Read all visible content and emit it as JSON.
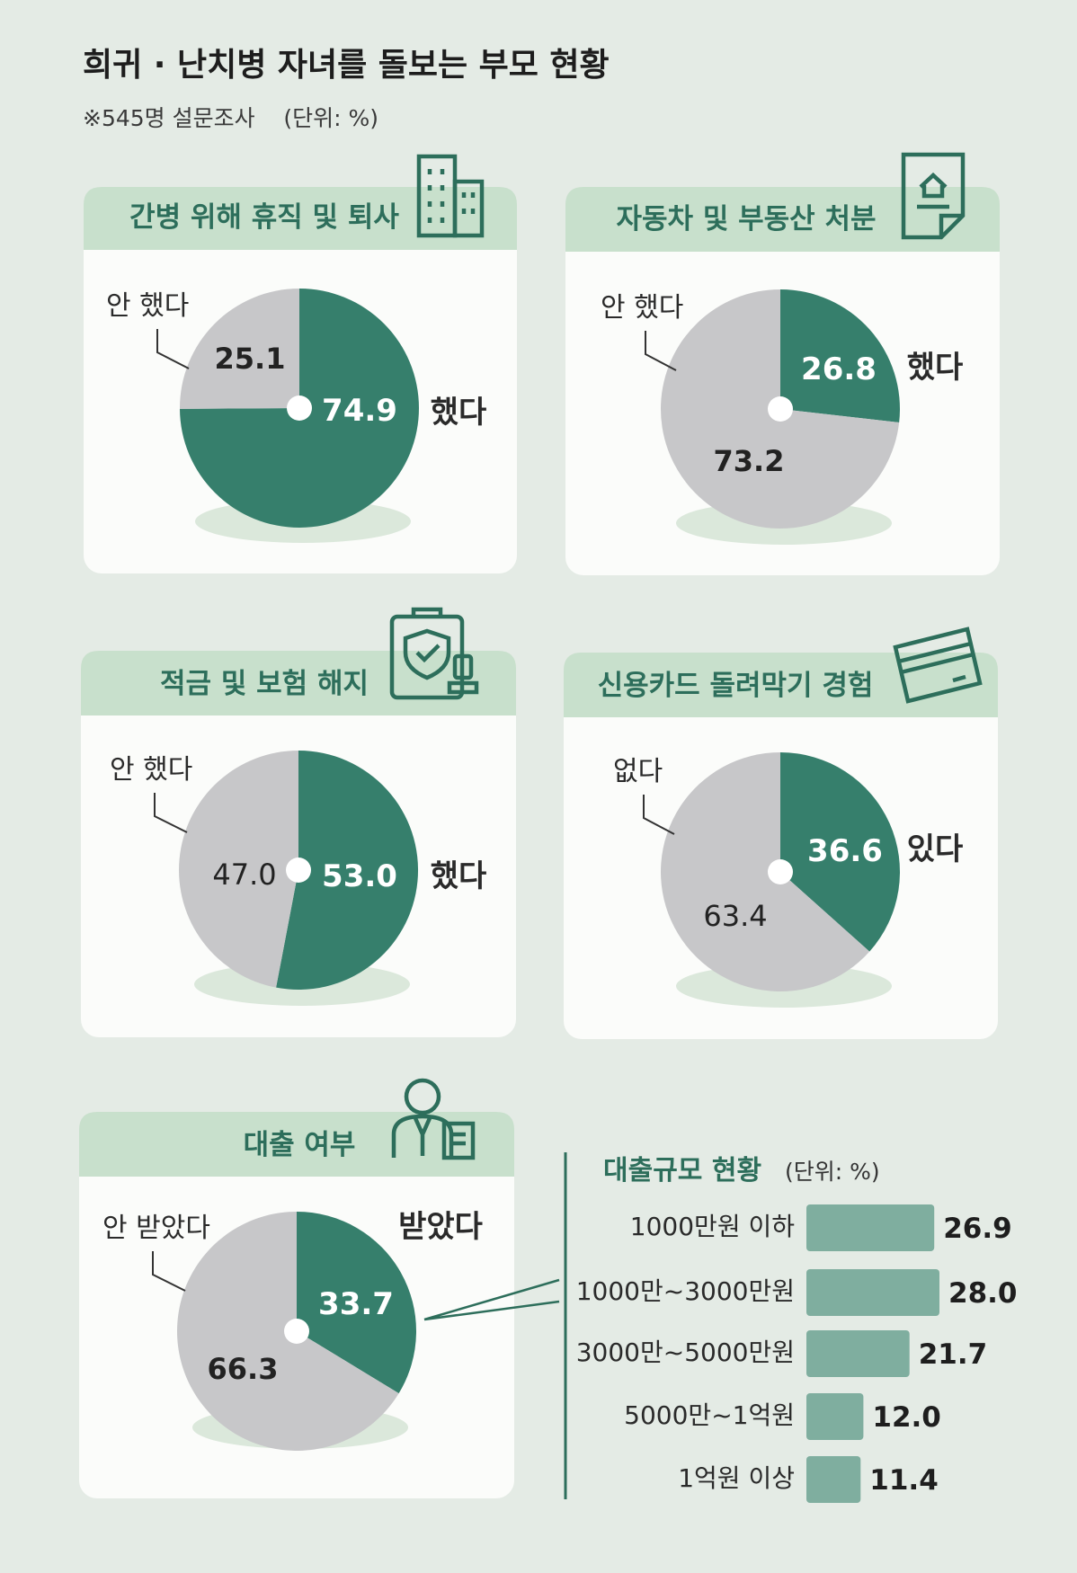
{
  "header": {
    "title": "희귀 · 난치병 자녀를 돌보는 부모 현황",
    "subtitle": "※545명 설문조사    (단위: %)"
  },
  "colors": {
    "background": "#e4ebe5",
    "header_band": "#c8e0cc",
    "card": "#fbfcfa",
    "green": "#367f6c",
    "gray": "#c7c7c9",
    "shadow": "#dbe8db",
    "bar": "#7fae9f",
    "title_text": "#1d1d1d",
    "header_text": "#2d6e5b"
  },
  "icons": [
    "office-building-icon",
    "property-document-icon",
    "insurance-shield-icon",
    "credit-card-icon",
    "loan-officer-icon"
  ],
  "chart_data": [
    {
      "type": "pie",
      "title": "간병 위해 휴직 및 퇴사",
      "slices": [
        {
          "label": "했다",
          "value": 74.9,
          "value_text": "74.9",
          "highlight": true
        },
        {
          "label": "안 했다",
          "value": 25.1,
          "value_text": "25.1",
          "highlight": false
        }
      ]
    },
    {
      "type": "pie",
      "title": "자동차 및 부동산 처분",
      "slices": [
        {
          "label": "했다",
          "value": 26.8,
          "value_text": "26.8",
          "highlight": true
        },
        {
          "label": "안 했다",
          "value": 73.2,
          "value_text": "73.2",
          "highlight": false
        }
      ]
    },
    {
      "type": "pie",
      "title": "적금 및 보험 해지",
      "slices": [
        {
          "label": "했다",
          "value": 53.0,
          "value_text": "53.0",
          "highlight": true
        },
        {
          "label": "안 했다",
          "value": 47.0,
          "value_text": "47.0",
          "highlight": false
        }
      ]
    },
    {
      "type": "pie",
      "title": "신용카드 돌려막기 경험",
      "slices": [
        {
          "label": "있다",
          "value": 36.6,
          "value_text": "36.6",
          "highlight": true
        },
        {
          "label": "없다",
          "value": 63.4,
          "value_text": "63.4",
          "highlight": false
        }
      ]
    },
    {
      "type": "pie",
      "title": "대출 여부",
      "slices": [
        {
          "label": "받았다",
          "value": 33.7,
          "value_text": "33.7",
          "highlight": true
        },
        {
          "label": "안 받았다",
          "value": 66.3,
          "value_text": "66.3",
          "highlight": false
        }
      ]
    },
    {
      "type": "bar",
      "orientation": "horizontal",
      "title": "대출규모 현황",
      "unit_note": "(단위: %)",
      "categories": [
        "1000만원 이하",
        "1000만~3000만원",
        "3000만~5000만원",
        "5000만~1억원",
        "1억원 이상"
      ],
      "values": [
        26.9,
        28.0,
        21.7,
        12.0,
        11.4
      ],
      "value_texts": [
        "26.9",
        "28.0",
        "21.7",
        "12.0",
        "11.4"
      ],
      "xlim": [
        0,
        30
      ]
    }
  ]
}
